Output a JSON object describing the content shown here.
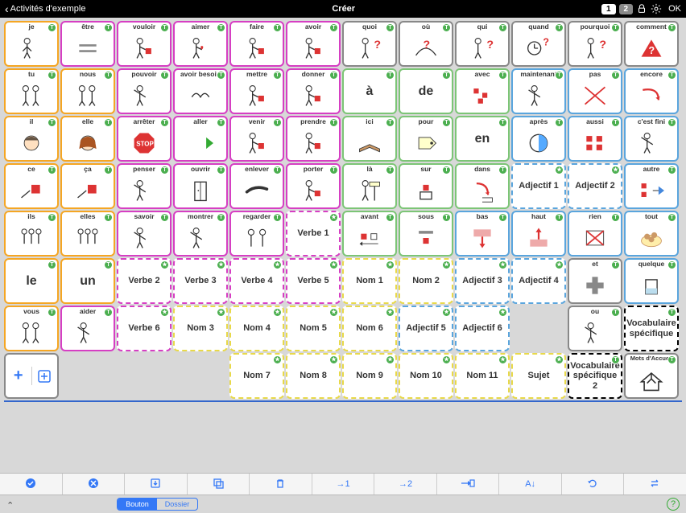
{
  "topbar": {
    "back_label": "Activités d'exemple",
    "title": "Créer",
    "page1": "1",
    "page2": "2",
    "ok_label": "OK"
  },
  "colors": {
    "orange": "#f5a623",
    "magenta": "#d63fc3",
    "gray": "#888",
    "green": "#7cc576",
    "blue": "#5aa5dd",
    "black": "#000000",
    "yellow": "#e8d94a",
    "badge_green": "#4caf50",
    "toolbar_blue": "#3478f6"
  },
  "grid": {
    "cols": 12,
    "rows": 8,
    "cells": [
      {
        "r": 0,
        "c": 0,
        "label": "je",
        "border": "orange",
        "badge": "t",
        "sym": "person"
      },
      {
        "r": 0,
        "c": 1,
        "label": "être",
        "border": "magenta",
        "badge": "t",
        "sym": "equals"
      },
      {
        "r": 0,
        "c": 2,
        "label": "vouloir",
        "border": "magenta",
        "badge": "t",
        "sym": "person_box"
      },
      {
        "r": 0,
        "c": 3,
        "label": "aimer",
        "border": "magenta",
        "badge": "t",
        "sym": "person_heart"
      },
      {
        "r": 0,
        "c": 4,
        "label": "faire",
        "border": "magenta",
        "badge": "t",
        "sym": "person_box_raise"
      },
      {
        "r": 0,
        "c": 5,
        "label": "avoir",
        "border": "magenta",
        "badge": "t",
        "sym": "person_hold"
      },
      {
        "r": 0,
        "c": 6,
        "label": "quoi",
        "border": "gray",
        "badge": "t",
        "sym": "person_q"
      },
      {
        "r": 0,
        "c": 7,
        "label": "où",
        "border": "gray",
        "badge": "t",
        "sym": "q_path"
      },
      {
        "r": 0,
        "c": 8,
        "label": "qui",
        "border": "gray",
        "badge": "t",
        "sym": "person_q2"
      },
      {
        "r": 0,
        "c": 9,
        "label": "quand",
        "border": "gray",
        "badge": "t",
        "sym": "clock_q"
      },
      {
        "r": 0,
        "c": 10,
        "label": "pourquoi",
        "border": "gray",
        "badge": "t",
        "sym": "head_q"
      },
      {
        "r": 0,
        "c": 11,
        "label": "comment",
        "border": "gray",
        "badge": "t",
        "sym": "triangle_q"
      },
      {
        "r": 1,
        "c": 0,
        "label": "tu",
        "border": "orange",
        "badge": "t",
        "sym": "two_people"
      },
      {
        "r": 1,
        "c": 1,
        "label": "nous",
        "border": "orange",
        "badge": "t",
        "sym": "two_people"
      },
      {
        "r": 1,
        "c": 2,
        "label": "pouvoir",
        "border": "magenta",
        "badge": "t",
        "sym": "person_raise"
      },
      {
        "r": 1,
        "c": 3,
        "label": "avoir besoin",
        "border": "magenta",
        "badge": "t",
        "sym": "hands"
      },
      {
        "r": 1,
        "c": 4,
        "label": "mettre",
        "border": "magenta",
        "badge": "t",
        "sym": "person_place"
      },
      {
        "r": 1,
        "c": 5,
        "label": "donner",
        "border": "magenta",
        "badge": "t",
        "sym": "person_give"
      },
      {
        "r": 1,
        "c": 6,
        "label": "à",
        "border": "green",
        "badge": "t",
        "textonly": true
      },
      {
        "r": 1,
        "c": 7,
        "label": "de",
        "border": "green",
        "badge": "t",
        "textonly": true
      },
      {
        "r": 1,
        "c": 8,
        "label": "avec",
        "border": "green",
        "badge": "t",
        "sym": "cubes"
      },
      {
        "r": 1,
        "c": 9,
        "label": "maintenant",
        "border": "blue",
        "badge": "t",
        "sym": "person_now"
      },
      {
        "r": 1,
        "c": 10,
        "label": "pas",
        "border": "blue",
        "badge": "t",
        "sym": "red_x"
      },
      {
        "r": 1,
        "c": 11,
        "label": "encore",
        "border": "blue",
        "badge": "t",
        "sym": "curve_arrow"
      },
      {
        "r": 2,
        "c": 0,
        "label": "il",
        "border": "orange",
        "badge": "t",
        "sym": "boy_head"
      },
      {
        "r": 2,
        "c": 1,
        "label": "elle",
        "border": "orange",
        "badge": "t",
        "sym": "girl_head"
      },
      {
        "r": 2,
        "c": 2,
        "label": "arrêter",
        "border": "magenta",
        "badge": "t",
        "sym": "stop"
      },
      {
        "r": 2,
        "c": 3,
        "label": "aller",
        "border": "magenta",
        "badge": "t",
        "sym": "arrow_right"
      },
      {
        "r": 2,
        "c": 4,
        "label": "venir",
        "border": "magenta",
        "badge": "t",
        "sym": "person_box"
      },
      {
        "r": 2,
        "c": 5,
        "label": "prendre",
        "border": "magenta",
        "badge": "t",
        "sym": "person_take"
      },
      {
        "r": 2,
        "c": 6,
        "label": "ici",
        "border": "green",
        "badge": "t",
        "sym": "book"
      },
      {
        "r": 2,
        "c": 7,
        "label": "pour",
        "border": "green",
        "badge": "t",
        "sym": "tag"
      },
      {
        "r": 2,
        "c": 8,
        "label": "en",
        "border": "green",
        "badge": "t",
        "textonly": true
      },
      {
        "r": 2,
        "c": 9,
        "label": "après",
        "border": "blue",
        "badge": "t",
        "sym": "half_circle"
      },
      {
        "r": 2,
        "c": 10,
        "label": "aussi",
        "border": "blue",
        "badge": "t",
        "sym": "four_squares"
      },
      {
        "r": 2,
        "c": 11,
        "label": "c'est fini",
        "border": "blue",
        "badge": "t",
        "sym": "person_desk"
      },
      {
        "r": 3,
        "c": 0,
        "label": "ce",
        "border": "orange",
        "badge": "t",
        "sym": "point_box"
      },
      {
        "r": 3,
        "c": 1,
        "label": "ça",
        "border": "orange",
        "badge": "t",
        "sym": "point_box"
      },
      {
        "r": 3,
        "c": 2,
        "label": "penser",
        "border": "magenta",
        "badge": "t",
        "sym": "person_think"
      },
      {
        "r": 3,
        "c": 3,
        "label": "ouvrir",
        "border": "magenta",
        "badge": "t",
        "sym": "door"
      },
      {
        "r": 3,
        "c": 4,
        "label": "enlever",
        "border": "magenta",
        "badge": "t",
        "sym": "hand_grab"
      },
      {
        "r": 3,
        "c": 5,
        "label": "porter",
        "border": "magenta",
        "badge": "t",
        "sym": "person_carry"
      },
      {
        "r": 3,
        "c": 6,
        "label": "là",
        "border": "green",
        "badge": "t",
        "sym": "signpost"
      },
      {
        "r": 3,
        "c": 7,
        "label": "sur",
        "border": "green",
        "badge": "t",
        "sym": "on_top"
      },
      {
        "r": 3,
        "c": 8,
        "label": "dans",
        "border": "green",
        "badge": "t",
        "sym": "into"
      },
      {
        "r": 3,
        "c": 9,
        "label": "Adjectif 1",
        "border": "blue",
        "badge": "star",
        "dashed": true,
        "textonly_sm": true
      },
      {
        "r": 3,
        "c": 10,
        "label": "Adjectif 2",
        "border": "blue",
        "badge": "star",
        "dashed": true,
        "textonly_sm": true
      },
      {
        "r": 3,
        "c": 11,
        "label": "autre",
        "border": "blue",
        "badge": "t",
        "sym": "diff_shapes"
      },
      {
        "r": 4,
        "c": 0,
        "label": "ils",
        "border": "orange",
        "badge": "t",
        "sym": "three_people"
      },
      {
        "r": 4,
        "c": 1,
        "label": "elles",
        "border": "orange",
        "badge": "t",
        "sym": "three_girls"
      },
      {
        "r": 4,
        "c": 2,
        "label": "savoir",
        "border": "magenta",
        "badge": "t",
        "sym": "person_teach"
      },
      {
        "r": 4,
        "c": 3,
        "label": "montrer",
        "border": "magenta",
        "badge": "t",
        "sym": "person_show"
      },
      {
        "r": 4,
        "c": 4,
        "label": "regarder",
        "border": "magenta",
        "badge": "t",
        "sym": "two_look"
      },
      {
        "r": 4,
        "c": 5,
        "label": "Verbe 1",
        "border": "magenta",
        "badge": "star",
        "dashed": true,
        "textonly_sm": true
      },
      {
        "r": 4,
        "c": 6,
        "label": "avant",
        "border": "green",
        "badge": "t",
        "sym": "before"
      },
      {
        "r": 4,
        "c": 7,
        "label": "sous",
        "border": "green",
        "badge": "t",
        "sym": "under"
      },
      {
        "r": 4,
        "c": 8,
        "label": "bas",
        "border": "blue",
        "badge": "t",
        "sym": "arrow_down"
      },
      {
        "r": 4,
        "c": 9,
        "label": "haut",
        "border": "blue",
        "badge": "t",
        "sym": "arrow_up"
      },
      {
        "r": 4,
        "c": 10,
        "label": "rien",
        "border": "blue",
        "badge": "t",
        "sym": "x_box"
      },
      {
        "r": 4,
        "c": 11,
        "label": "tout",
        "border": "blue",
        "badge": "t",
        "sym": "cookies"
      },
      {
        "r": 5,
        "c": 0,
        "label": "le",
        "border": "orange",
        "badge": "t",
        "textonly": true
      },
      {
        "r": 5,
        "c": 1,
        "label": "un",
        "border": "orange",
        "badge": "t",
        "textonly": true
      },
      {
        "r": 5,
        "c": 2,
        "label": "Verbe 2",
        "border": "magenta",
        "badge": "star",
        "dashed": true,
        "textonly_sm": true
      },
      {
        "r": 5,
        "c": 3,
        "label": "Verbe 3",
        "border": "magenta",
        "badge": "star",
        "dashed": true,
        "textonly_sm": true
      },
      {
        "r": 5,
        "c": 4,
        "label": "Verbe 4",
        "border": "magenta",
        "badge": "star",
        "dashed": true,
        "textonly_sm": true
      },
      {
        "r": 5,
        "c": 5,
        "label": "Verbe 5",
        "border": "magenta",
        "badge": "star",
        "dashed": true,
        "textonly_sm": true
      },
      {
        "r": 5,
        "c": 6,
        "label": "Nom 1",
        "border": "yellow",
        "badge": "star",
        "dashed": true,
        "textonly_sm": true
      },
      {
        "r": 5,
        "c": 7,
        "label": "Nom 2",
        "border": "yellow",
        "badge": "star",
        "dashed": true,
        "textonly_sm": true
      },
      {
        "r": 5,
        "c": 8,
        "label": "Adjectif 3",
        "border": "blue",
        "badge": "star",
        "dashed": true,
        "textonly_sm": true
      },
      {
        "r": 5,
        "c": 9,
        "label": "Adjectif 4",
        "border": "blue",
        "badge": "star",
        "dashed": true,
        "textonly_sm": true
      },
      {
        "r": 5,
        "c": 10,
        "label": "et",
        "border": "gray",
        "badge": "t",
        "sym": "plus"
      },
      {
        "r": 5,
        "c": 11,
        "label": "quelque",
        "border": "blue",
        "badge": "t",
        "sym": "cup"
      },
      {
        "r": 6,
        "c": 0,
        "label": "vous",
        "border": "orange",
        "badge": "t",
        "sym": "two_people"
      },
      {
        "r": 6,
        "c": 1,
        "label": "aider",
        "border": "magenta",
        "badge": "t",
        "sym": "person_help"
      },
      {
        "r": 6,
        "c": 2,
        "label": "Verbe 6",
        "border": "magenta",
        "badge": "star",
        "dashed": true,
        "textonly_sm": true
      },
      {
        "r": 6,
        "c": 3,
        "label": "Nom 3",
        "border": "yellow",
        "badge": "star",
        "dashed": true,
        "textonly_sm": true
      },
      {
        "r": 6,
        "c": 4,
        "label": "Nom 4",
        "border": "yellow",
        "badge": "star",
        "dashed": true,
        "textonly_sm": true
      },
      {
        "r": 6,
        "c": 5,
        "label": "Nom 5",
        "border": "yellow",
        "badge": "star",
        "dashed": true,
        "textonly_sm": true
      },
      {
        "r": 6,
        "c": 6,
        "label": "Nom 6",
        "border": "yellow",
        "badge": "star",
        "dashed": true,
        "textonly_sm": true
      },
      {
        "r": 6,
        "c": 7,
        "label": "Adjectif 5",
        "border": "blue",
        "badge": "star",
        "dashed": true,
        "textonly_sm": true
      },
      {
        "r": 6,
        "c": 8,
        "label": "Adjectif 6",
        "border": "blue",
        "badge": "star",
        "dashed": true,
        "textonly_sm": true
      },
      {
        "r": 6,
        "c": 9,
        "empty": true
      },
      {
        "r": 6,
        "c": 10,
        "label": "ou",
        "border": "gray",
        "badge": "t",
        "sym": "person_choice"
      },
      {
        "r": 6,
        "c": 11,
        "label": "Vocabulaire spécifique",
        "border": "black",
        "badge": "t",
        "dashed": true,
        "textonly_sm": true
      },
      {
        "r": 7,
        "c": 0,
        "addcell": true,
        "border": "gray"
      },
      {
        "r": 7,
        "c": 1,
        "empty": true
      },
      {
        "r": 7,
        "c": 2,
        "empty": true
      },
      {
        "r": 7,
        "c": 3,
        "empty": true
      },
      {
        "r": 7,
        "c": 4,
        "label": "Nom 7",
        "border": "yellow",
        "badge": "star",
        "dashed": true,
        "textonly_sm": true
      },
      {
        "r": 7,
        "c": 5,
        "label": "Nom 8",
        "border": "yellow",
        "badge": "star",
        "dashed": true,
        "textonly_sm": true
      },
      {
        "r": 7,
        "c": 6,
        "label": "Nom 9",
        "border": "yellow",
        "badge": "star",
        "dashed": true,
        "textonly_sm": true
      },
      {
        "r": 7,
        "c": 7,
        "label": "Nom 10",
        "border": "yellow",
        "badge": "star",
        "dashed": true,
        "textonly_sm": true
      },
      {
        "r": 7,
        "c": 8,
        "label": "Nom 11",
        "border": "yellow",
        "badge": "star",
        "dashed": true,
        "textonly_sm": true
      },
      {
        "r": 7,
        "c": 9,
        "label": "Sujet",
        "border": "yellow",
        "badge": "star",
        "dashed": true,
        "textonly_sm": true
      },
      {
        "r": 7,
        "c": 10,
        "label": "Vocabulaire spécifique 2",
        "border": "black",
        "badge": "t",
        "dashed": true,
        "textonly_sm": true
      },
      {
        "r": 7,
        "c": 11,
        "label": "Mots d'Accueil",
        "border": "gray",
        "badge": "t",
        "sym": "home",
        "textonly_sm_top": true
      }
    ]
  },
  "toolbar": {
    "items": [
      {
        "icon": "check"
      },
      {
        "icon": "cancel"
      },
      {
        "icon": "import"
      },
      {
        "icon": "copy"
      },
      {
        "icon": "trash"
      },
      {
        "icon": "to1",
        "text": "→1"
      },
      {
        "icon": "to2",
        "text": "→2"
      },
      {
        "icon": "tofolder"
      },
      {
        "icon": "sort",
        "text": "A↓"
      },
      {
        "icon": "refresh"
      },
      {
        "icon": "swap"
      }
    ]
  },
  "segmented": {
    "btn1": "Bouton",
    "btn2": "Dossier",
    "active": 0
  }
}
